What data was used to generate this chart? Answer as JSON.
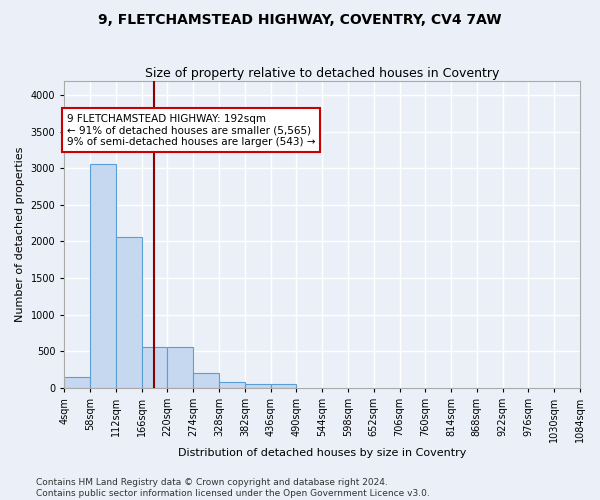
{
  "title_line1": "9, FLETCHAMSTEAD HIGHWAY, COVENTRY, CV4 7AW",
  "title_line2": "Size of property relative to detached houses in Coventry",
  "xlabel": "Distribution of detached houses by size in Coventry",
  "ylabel": "Number of detached properties",
  "bar_color": "#c5d8f0",
  "bar_edge_color": "#5a9fd4",
  "vline_color": "#8b0000",
  "vline_x": 192,
  "annotation_text": "9 FLETCHAMSTEAD HIGHWAY: 192sqm\n← 91% of detached houses are smaller (5,565)\n9% of semi-detached houses are larger (543) →",
  "annotation_box_color": "#ffffff",
  "annotation_box_edge_color": "#cc0000",
  "bin_edges": [
    4,
    58,
    112,
    166,
    220,
    274,
    328,
    382,
    436,
    490,
    544,
    598,
    652,
    706,
    760,
    814,
    868,
    922,
    976,
    1030,
    1084
  ],
  "bin_counts": [
    140,
    3060,
    2060,
    560,
    560,
    200,
    80,
    50,
    50,
    0,
    0,
    0,
    0,
    0,
    0,
    0,
    0,
    0,
    0,
    0
  ],
  "ylim": [
    0,
    4200
  ],
  "yticks": [
    0,
    500,
    1000,
    1500,
    2000,
    2500,
    3000,
    3500,
    4000
  ],
  "footer_line1": "Contains HM Land Registry data © Crown copyright and database right 2024.",
  "footer_line2": "Contains public sector information licensed under the Open Government Licence v3.0.",
  "bg_color": "#eaeff8",
  "plot_bg_color": "#eaeff8",
  "grid_color": "#ffffff",
  "title_fontsize": 10,
  "subtitle_fontsize": 9,
  "axis_label_fontsize": 8,
  "tick_fontsize": 7,
  "footer_fontsize": 6.5,
  "annotation_fontsize": 7.5
}
